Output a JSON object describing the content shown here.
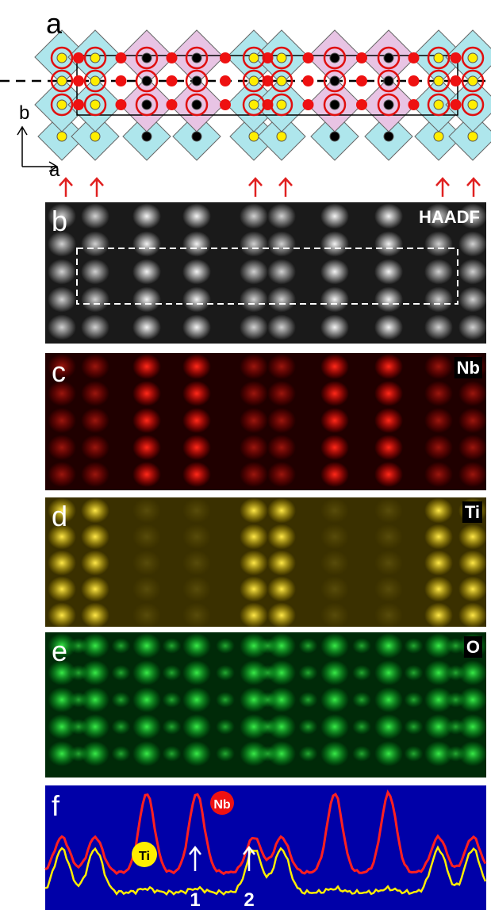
{
  "panel_a": {
    "label": "a",
    "axis_b": "b",
    "axis_a": "a"
  },
  "panel_b": {
    "label": "b",
    "tag": "HAADF"
  },
  "panel_c": {
    "label": "c",
    "tag": "Nb"
  },
  "panel_d": {
    "label": "d",
    "tag": "Ti"
  },
  "panel_e": {
    "label": "e",
    "tag": "O"
  },
  "panel_f": {
    "label": "f",
    "legend_nb": "Nb",
    "legend_ti": "Ti",
    "marker_1": "1",
    "marker_2": "2"
  }
}
